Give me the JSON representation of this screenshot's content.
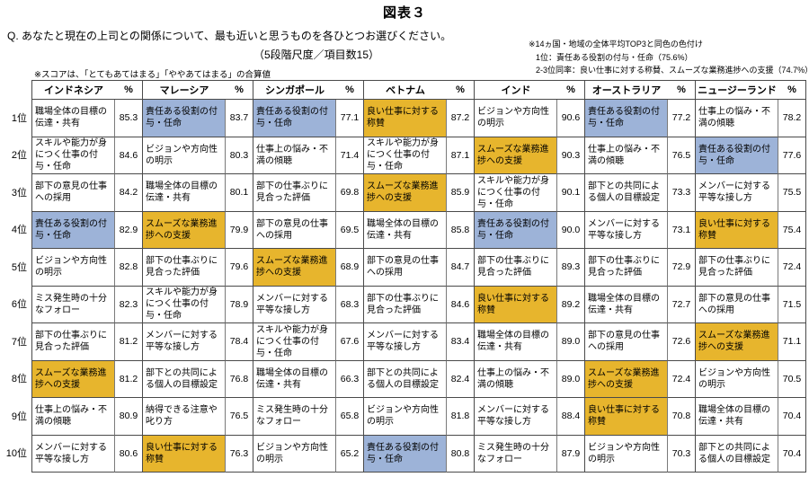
{
  "title": "図表３",
  "question": "Q. あなたと現在の上司との関係について、最も近いと思うものを各ひとつお選びください。",
  "subtitle": "（5段階尺度／項目数15）",
  "score_note": "※スコアは、「とてもあてはまる」「ややあてはまる」の合算値",
  "legend": {
    "line1": "※14ヵ国・地域の全体平均TOP3と同色の色付け",
    "line2": "1位：責任ある役割の付与・任命（75.6%）",
    "line3": "2-3位同率：良い仕事に対する称賛、スムーズな業務進捗への支援（74.7%）"
  },
  "colors": {
    "top1_blue": "#9DB3D8",
    "top23_gold": "#E7B52D",
    "border": "#4a4a4a"
  },
  "percent_label": "%",
  "rank_labels": [
    "1位",
    "2位",
    "3位",
    "4位",
    "5位",
    "6位",
    "7位",
    "8位",
    "9位",
    "10位"
  ],
  "countries": [
    {
      "name": "インドネシア",
      "rows": [
        {
          "item": "職場全体の目標の伝達・共有",
          "value": "85.3",
          "hl": ""
        },
        {
          "item": "スキルや能力が身につく仕事の付与・任命",
          "value": "84.6",
          "hl": ""
        },
        {
          "item": "部下の意見の仕事への採用",
          "value": "84.2",
          "hl": ""
        },
        {
          "item": "責任ある役割の付与・任命",
          "value": "82.9",
          "hl": "blue"
        },
        {
          "item": "ビジョンや方向性の明示",
          "value": "82.8",
          "hl": ""
        },
        {
          "item": "ミス発生時の十分なフォロー",
          "value": "82.3",
          "hl": ""
        },
        {
          "item": "部下の仕事ぶりに見合った評価",
          "value": "81.2",
          "hl": ""
        },
        {
          "item": "スムーズな業務進捗への支援",
          "value": "81.2",
          "hl": "gold"
        },
        {
          "item": "仕事上の悩み・不満の傾聴",
          "value": "80.9",
          "hl": ""
        },
        {
          "item": "メンバーに対する平等な接し方",
          "value": "80.6",
          "hl": ""
        }
      ]
    },
    {
      "name": "マレーシア",
      "rows": [
        {
          "item": "責任ある役割の付与・任命",
          "value": "83.7",
          "hl": "blue"
        },
        {
          "item": "ビジョンや方向性の明示",
          "value": "80.3",
          "hl": ""
        },
        {
          "item": "職場全体の目標の伝達・共有",
          "value": "80.1",
          "hl": ""
        },
        {
          "item": "スムーズな業務進捗への支援",
          "value": "79.9",
          "hl": "gold"
        },
        {
          "item": "部下の仕事ぶりに見合った評価",
          "value": "79.6",
          "hl": ""
        },
        {
          "item": "スキルや能力が身につく仕事の付与・任命",
          "value": "78.9",
          "hl": ""
        },
        {
          "item": "メンバーに対する平等な接し方",
          "value": "78.4",
          "hl": ""
        },
        {
          "item": "部下との共同による個人の目標設定",
          "value": "76.8",
          "hl": ""
        },
        {
          "item": "納得できる注意や叱り方",
          "value": "76.5",
          "hl": ""
        },
        {
          "item": "良い仕事に対する称賛",
          "value": "76.3",
          "hl": "gold"
        }
      ]
    },
    {
      "name": "シンガポール",
      "rows": [
        {
          "item": "責任ある役割の付与・任命",
          "value": "77.1",
          "hl": "blue"
        },
        {
          "item": "仕事上の悩み・不満の傾聴",
          "value": "71.4",
          "hl": ""
        },
        {
          "item": "部下の仕事ぶりに見合った評価",
          "value": "69.8",
          "hl": ""
        },
        {
          "item": "部下の意見の仕事への採用",
          "value": "69.5",
          "hl": ""
        },
        {
          "item": "スムーズな業務進捗への支援",
          "value": "68.9",
          "hl": "gold"
        },
        {
          "item": "メンバーに対する平等な接し方",
          "value": "68.3",
          "hl": ""
        },
        {
          "item": "スキルや能力が身につく仕事の付与・任命",
          "value": "67.6",
          "hl": ""
        },
        {
          "item": "職場全体の目標の伝達・共有",
          "value": "66.3",
          "hl": ""
        },
        {
          "item": "ミス発生時の十分なフォロー",
          "value": "65.8",
          "hl": ""
        },
        {
          "item": "ビジョンや方向性の明示",
          "value": "65.2",
          "hl": ""
        }
      ]
    },
    {
      "name": "ベトナム",
      "rows": [
        {
          "item": "良い仕事に対する称賛",
          "value": "87.2",
          "hl": "gold"
        },
        {
          "item": "スキルや能力が身につく仕事の付与・任命",
          "value": "87.1",
          "hl": ""
        },
        {
          "item": "スムーズな業務進捗への支援",
          "value": "85.9",
          "hl": "gold"
        },
        {
          "item": "職場全体の目標の伝達・共有",
          "value": "85.8",
          "hl": ""
        },
        {
          "item": "部下の意見の仕事への採用",
          "value": "84.7",
          "hl": ""
        },
        {
          "item": "部下の仕事ぶりに見合った評価",
          "value": "84.6",
          "hl": ""
        },
        {
          "item": "メンバーに対する平等な接し方",
          "value": "83.4",
          "hl": ""
        },
        {
          "item": "部下との共同による個人の目標設定",
          "value": "82.4",
          "hl": ""
        },
        {
          "item": "ビジョンや方向性の明示",
          "value": "81.8",
          "hl": ""
        },
        {
          "item": "責任ある役割の付与・任命",
          "value": "80.8",
          "hl": "blue"
        }
      ]
    },
    {
      "name": "インド",
      "rows": [
        {
          "item": "ビジョンや方向性の明示",
          "value": "90.6",
          "hl": ""
        },
        {
          "item": "スムーズな業務進捗への支援",
          "value": "90.3",
          "hl": "gold"
        },
        {
          "item": "スキルや能力が身につく仕事の付与・任命",
          "value": "90.1",
          "hl": ""
        },
        {
          "item": "責任ある役割の付与・任命",
          "value": "90.0",
          "hl": "blue"
        },
        {
          "item": "部下の仕事ぶりに見合った評価",
          "value": "89.3",
          "hl": ""
        },
        {
          "item": "良い仕事に対する称賛",
          "value": "89.2",
          "hl": "gold"
        },
        {
          "item": "職場全体の目標の伝達・共有",
          "value": "89.0",
          "hl": ""
        },
        {
          "item": "仕事上の悩み・不満の傾聴",
          "value": "89.0",
          "hl": ""
        },
        {
          "item": "メンバーに対する平等な接し方",
          "value": "88.4",
          "hl": ""
        },
        {
          "item": "ミス発生時の十分なフォロー",
          "value": "87.9",
          "hl": ""
        }
      ]
    },
    {
      "name": "オーストラリア",
      "rows": [
        {
          "item": "責任ある役割の付与・任命",
          "value": "77.2",
          "hl": "blue"
        },
        {
          "item": "仕事上の悩み・不満の傾聴",
          "value": "76.5",
          "hl": ""
        },
        {
          "item": "部下との共同による個人の目標設定",
          "value": "73.3",
          "hl": ""
        },
        {
          "item": "メンバーに対する平等な接し方",
          "value": "73.1",
          "hl": ""
        },
        {
          "item": "部下の仕事ぶりに見合った評価",
          "value": "72.9",
          "hl": ""
        },
        {
          "item": "職場全体の目標の伝達・共有",
          "value": "72.7",
          "hl": ""
        },
        {
          "item": "部下の意見の仕事への採用",
          "value": "72.6",
          "hl": ""
        },
        {
          "item": "スムーズな業務進捗への支援",
          "value": "72.4",
          "hl": "gold"
        },
        {
          "item": "良い仕事に対する称賛",
          "value": "70.8",
          "hl": "gold"
        },
        {
          "item": "ビジョンや方向性の明示",
          "value": "70.3",
          "hl": ""
        }
      ]
    },
    {
      "name": "ニュージーランド",
      "rows": [
        {
          "item": "仕事上の悩み・不満の傾聴",
          "value": "78.2",
          "hl": ""
        },
        {
          "item": "責任ある役割の付与・任命",
          "value": "77.6",
          "hl": "blue"
        },
        {
          "item": "メンバーに対する平等な接し方",
          "value": "75.5",
          "hl": ""
        },
        {
          "item": "良い仕事に対する称賛",
          "value": "75.4",
          "hl": "gold"
        },
        {
          "item": "部下の仕事ぶりに見合った評価",
          "value": "72.4",
          "hl": ""
        },
        {
          "item": "部下の意見の仕事への採用",
          "value": "71.5",
          "hl": ""
        },
        {
          "item": "スムーズな業務進捗への支援",
          "value": "71.1",
          "hl": "gold"
        },
        {
          "item": "ビジョンや方向性の明示",
          "value": "70.5",
          "hl": ""
        },
        {
          "item": "職場全体の目標の伝達・共有",
          "value": "70.4",
          "hl": ""
        },
        {
          "item": "部下との共同による個人の目標設定",
          "value": "70.4",
          "hl": ""
        }
      ]
    }
  ]
}
